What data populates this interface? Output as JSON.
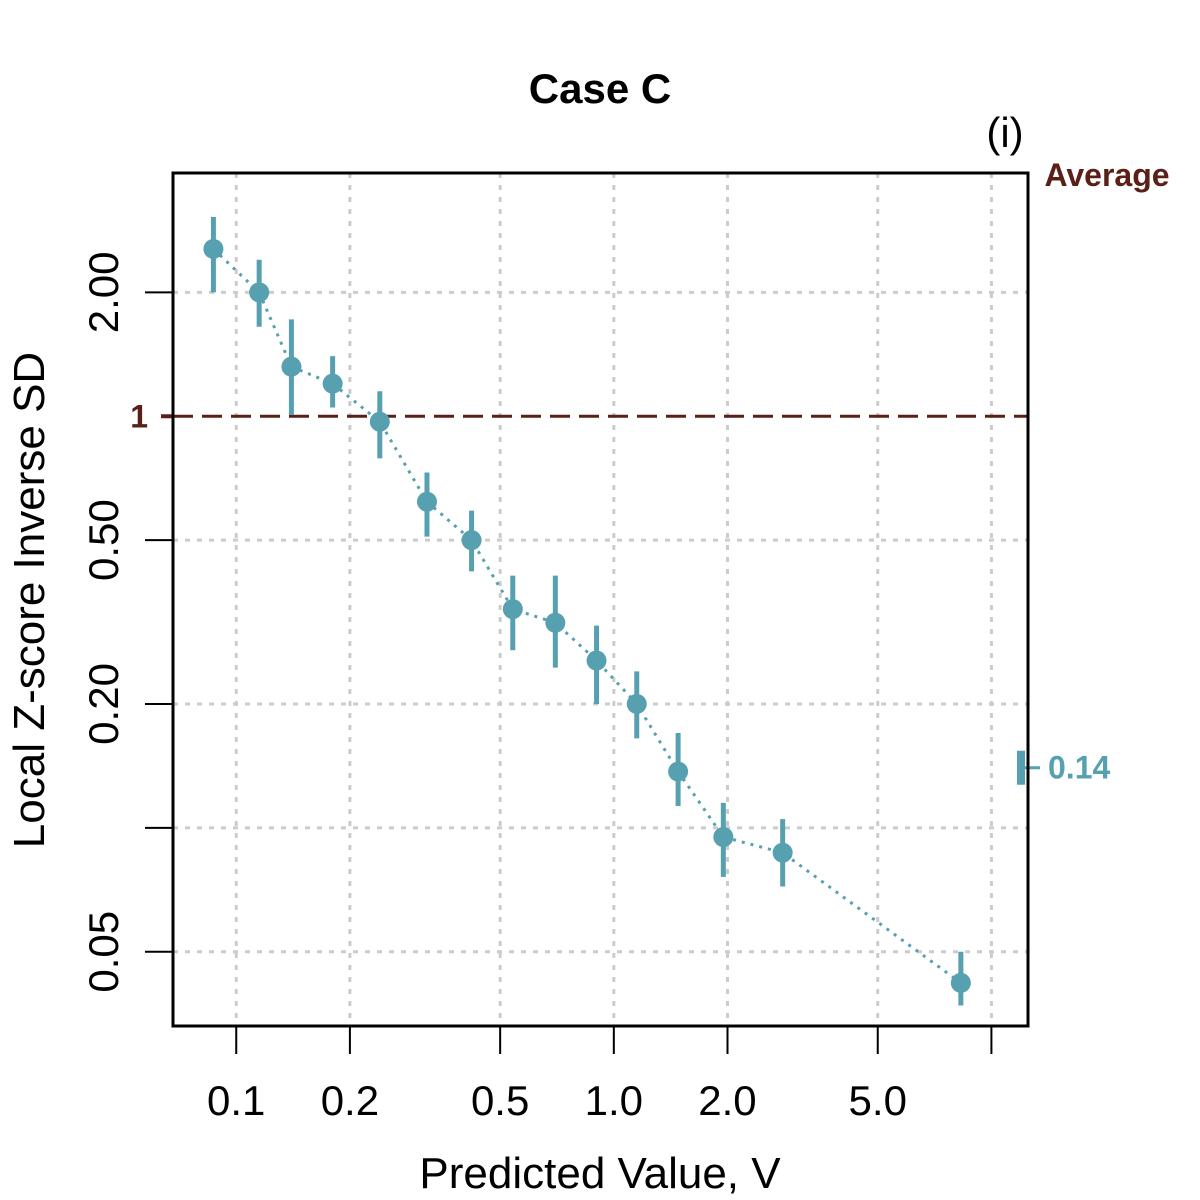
{
  "chart_data": {
    "type": "scatter",
    "title": "Case C",
    "panel_label": "(i)",
    "xlabel": "Predicted Value, V",
    "ylabel": "Local Z-score Inverse SD",
    "x_scale": "log",
    "y_scale": "log",
    "xlim": [
      0.068,
      12.5
    ],
    "ylim": [
      0.033,
      3.9
    ],
    "x_ticks": [
      {
        "value": 0.1,
        "label": "0.1"
      },
      {
        "value": 0.2,
        "label": "0.2"
      },
      {
        "value": 0.5,
        "label": "0.5"
      },
      {
        "value": 1.0,
        "label": "1.0"
      },
      {
        "value": 2.0,
        "label": "2.0"
      },
      {
        "value": 5.0,
        "label": "5.0"
      },
      {
        "value": 10.0,
        "label": ""
      }
    ],
    "y_ticks": [
      {
        "value": 0.05,
        "label": "0.05"
      },
      {
        "value": 0.1,
        "label": ""
      },
      {
        "value": 0.2,
        "label": "0.20"
      },
      {
        "value": 0.5,
        "label": "0.50"
      },
      {
        "value": 2.0,
        "label": "2.00"
      }
    ],
    "grid": true,
    "series": [
      {
        "name": "Local Z-score Inverse SD",
        "color": "#56a0b0",
        "x": [
          0.087,
          0.115,
          0.14,
          0.18,
          0.24,
          0.32,
          0.42,
          0.54,
          0.7,
          0.9,
          1.15,
          1.48,
          1.95,
          2.8,
          8.3
        ],
        "y": [
          2.55,
          2.0,
          1.32,
          1.2,
          0.97,
          0.62,
          0.5,
          0.34,
          0.315,
          0.255,
          0.2,
          0.137,
          0.095,
          0.087,
          0.042
        ],
        "y_low": [
          2.0,
          1.65,
          1.01,
          1.05,
          0.79,
          0.51,
          0.42,
          0.27,
          0.245,
          0.2,
          0.165,
          0.113,
          0.076,
          0.072,
          0.037
        ],
        "y_high": [
          3.05,
          2.4,
          1.72,
          1.4,
          1.15,
          0.73,
          0.59,
          0.41,
          0.41,
          0.31,
          0.24,
          0.17,
          0.115,
          0.105,
          0.05
        ]
      }
    ],
    "reference_line": {
      "value": 1,
      "label": "1",
      "legend": "Average",
      "color": "#5a1f16"
    },
    "side_marker": {
      "value": 0.14,
      "label": "0.14",
      "color": "#56a0b0"
    }
  }
}
